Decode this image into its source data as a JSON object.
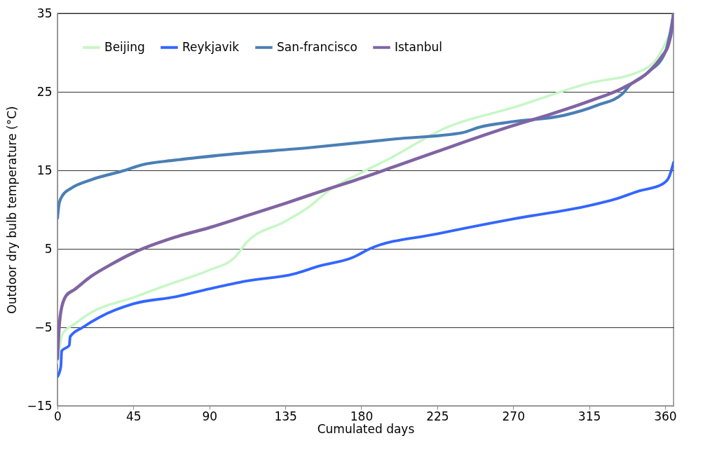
{
  "chart_data": {
    "type": "line",
    "xlabel": "Cumulated days",
    "ylabel": "Outdoor dry bulb temperature (°C)",
    "xlim": [
      0,
      365
    ],
    "xticks": [
      0,
      45,
      90,
      135,
      180,
      225,
      270,
      315,
      360
    ],
    "ylim": [
      -15,
      35
    ],
    "yticks": [
      -15,
      -5,
      5,
      15,
      25,
      35
    ],
    "grid": "y",
    "legend": "top left",
    "marker": "none",
    "line_style": "solid",
    "series": [
      {
        "name": "Beijing",
        "color": "#c6f7c6",
        "x": [
          0,
          3,
          10,
          20,
          45,
          65,
          90,
          105,
          112,
          135,
          150,
          160,
          180,
          195,
          231,
          270,
          315,
          345,
          355,
          362
        ],
        "values": [
          -9.5,
          -5.8,
          -4.6,
          -3.1,
          -1.2,
          0.4,
          2.3,
          3.9,
          5.8,
          8.5,
          10.5,
          12.3,
          14.7,
          16.3,
          20.5,
          23,
          26.1,
          27.6,
          29.2,
          32
        ]
      },
      {
        "name": "Reykjavik",
        "color": "#3366ff",
        "x": [
          0,
          2,
          2.5,
          7,
          7.5,
          15,
          25,
          45,
          70,
          90,
          112,
          140,
          155,
          175,
          185,
          225,
          270,
          315,
          330,
          345,
          358,
          362,
          365
        ],
        "values": [
          -11.3,
          -10,
          -8,
          -7.3,
          -6.2,
          -5,
          -3.7,
          -2,
          -1.1,
          -0.1,
          0.9,
          1.8,
          2.8,
          3.9,
          5,
          6.9,
          8.8,
          10.5,
          11.3,
          12.4,
          13.2,
          14,
          16
        ]
      },
      {
        "name": "San-francisco",
        "color": "#4a7fb5",
        "x": [
          0,
          1,
          3,
          8,
          20,
          40,
          50,
          70,
          100,
          150,
          200,
          240,
          250,
          270,
          300,
          320,
          335,
          338,
          350,
          360,
          363,
          365
        ],
        "values": [
          8.9,
          10.8,
          11.8,
          12.7,
          13.8,
          15,
          15.7,
          16.3,
          17,
          17.9,
          19,
          19.8,
          20.5,
          21.2,
          22,
          23.3,
          24.8,
          25.6,
          27.5,
          30,
          32.5,
          35
        ]
      },
      {
        "name": "Istanbul",
        "color": "#8064a2",
        "x": [
          0,
          1,
          2,
          5,
          10,
          20,
          30,
          45,
          70,
          90,
          112,
          135,
          160,
          180,
          200,
          225,
          270,
          290,
          315,
          335,
          350,
          358,
          362,
          364,
          365
        ],
        "values": [
          -9,
          -5,
          -3,
          -1,
          -0.2,
          1.5,
          2.8,
          4.5,
          6.5,
          7.7,
          9.2,
          10.8,
          12.6,
          14,
          15.5,
          17.4,
          20.7,
          22,
          23.8,
          25.5,
          27.5,
          29.5,
          31,
          33,
          35
        ]
      }
    ]
  }
}
